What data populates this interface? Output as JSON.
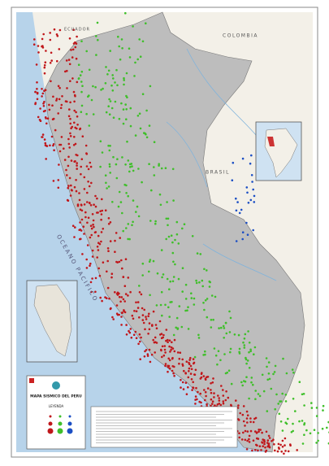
{
  "map": {
    "title": "MAPA SISMICO DEL PERU",
    "legend_title": "LEYENDA",
    "labels": {
      "colombia": "COLOMBIA",
      "brasil": "BRASIL",
      "ecuador": "ECUADOR",
      "ocean": "OCEANO PACIFICO"
    }
  }
}
